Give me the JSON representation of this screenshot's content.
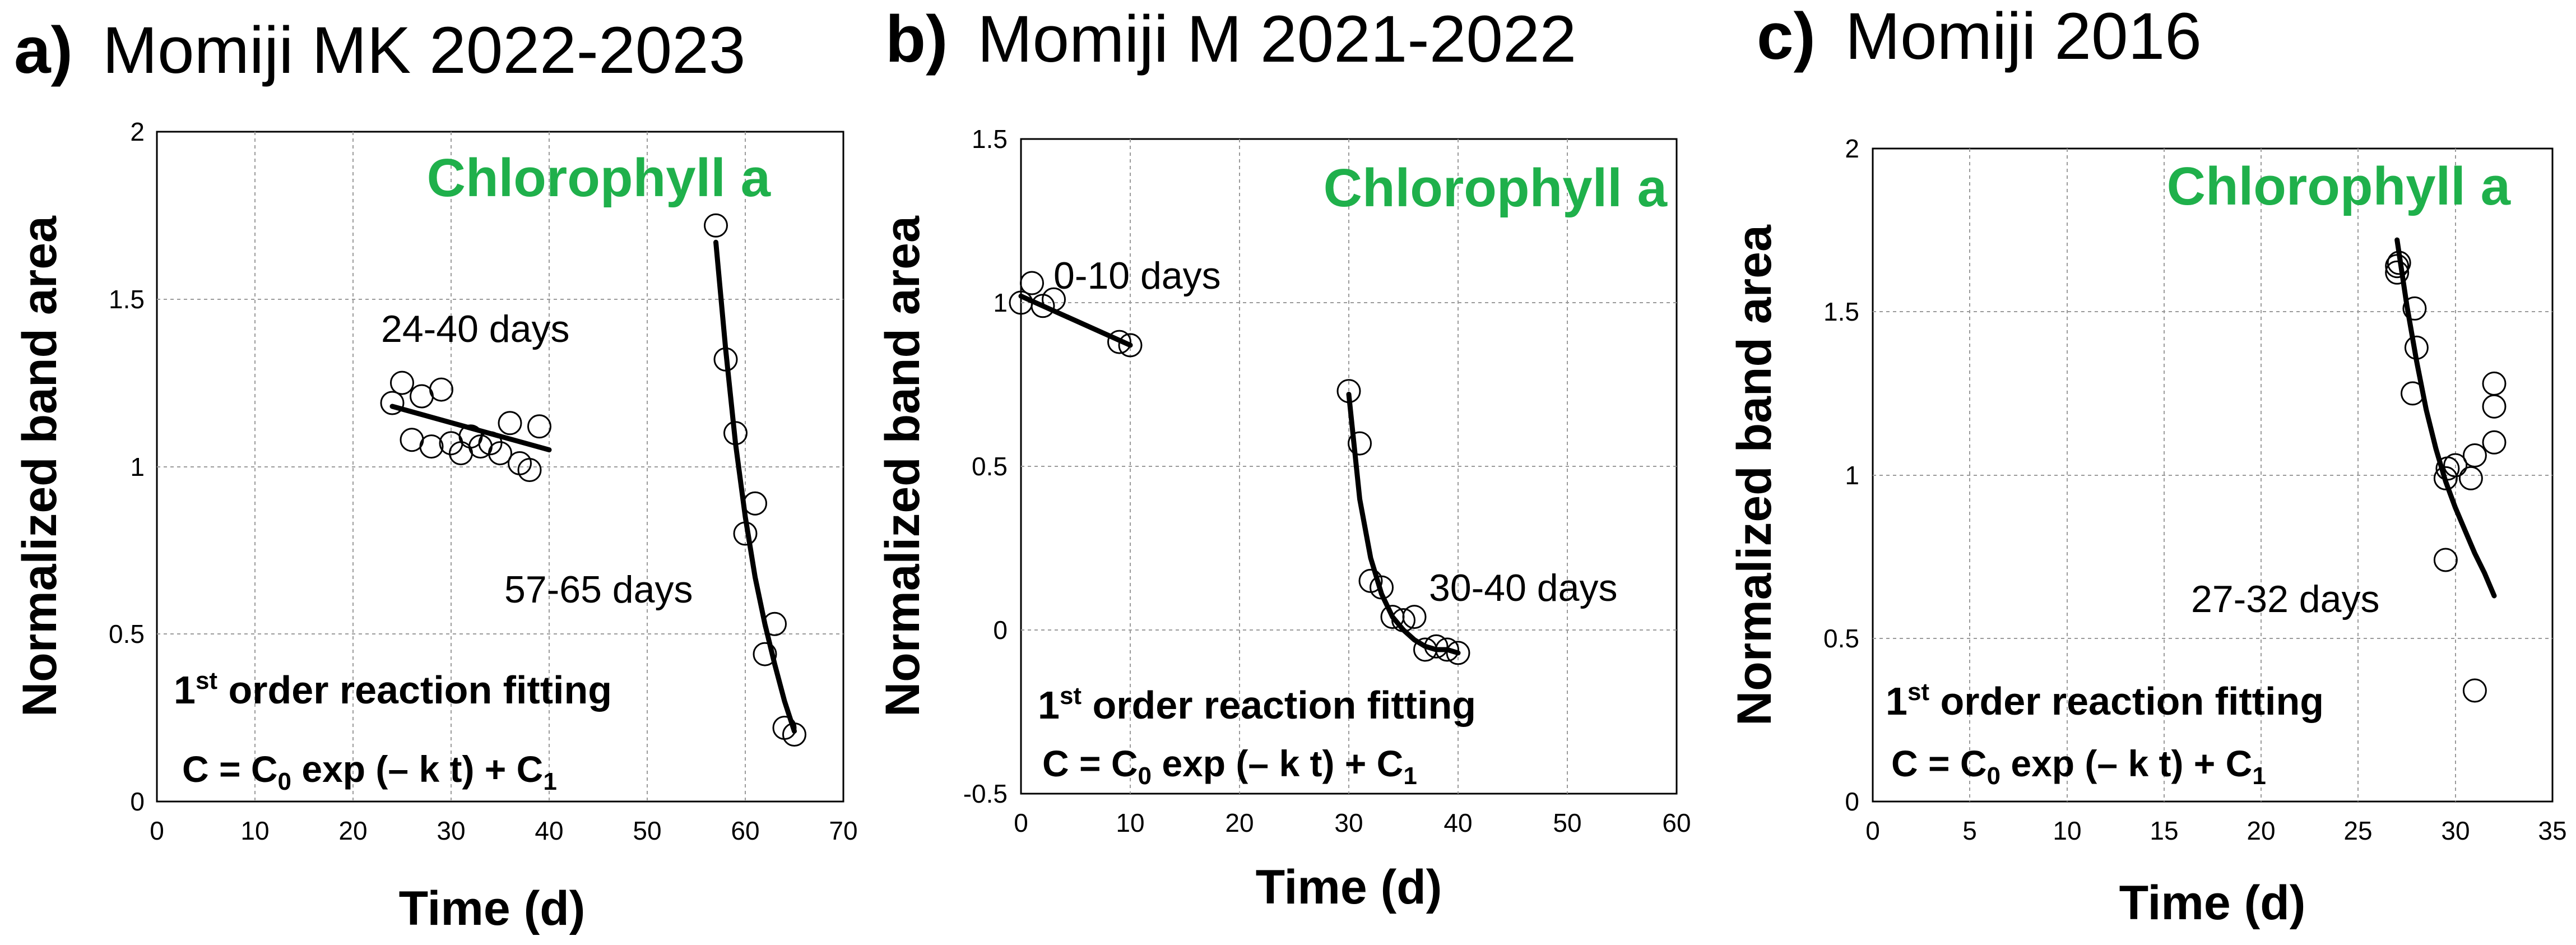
{
  "colors": {
    "accent": "#1fb04b",
    "ink": "#000000",
    "grid": "#9a9a9a"
  },
  "chart_data": [
    {
      "type": "scatter",
      "letter": "a)",
      "title": "Momiji MK 2022-2023",
      "xlabel": "Time (d)",
      "ylabel": "Normalized band area",
      "xlim": [
        0,
        70
      ],
      "ylim": [
        0,
        2
      ],
      "xticks": [
        "0",
        "10",
        "20",
        "30",
        "40",
        "50",
        "60",
        "70"
      ],
      "yticks": [
        "0",
        "0.5",
        "1",
        "1.5",
        "2"
      ],
      "species": "Chlorophyll a",
      "grid": true,
      "series": [
        {
          "name": "24-40 days",
          "points": [
            [
              24,
              1.19
            ],
            [
              25,
              1.25
            ],
            [
              26,
              1.08
            ],
            [
              27,
              1.21
            ],
            [
              28,
              1.06
            ],
            [
              29,
              1.23
            ],
            [
              30,
              1.07
            ],
            [
              31,
              1.04
            ],
            [
              32,
              1.09
            ],
            [
              33,
              1.06
            ],
            [
              34,
              1.07
            ],
            [
              35,
              1.04
            ],
            [
              36,
              1.13
            ],
            [
              37,
              1.01
            ],
            [
              38,
              0.99
            ],
            [
              39,
              1.12
            ]
          ],
          "fit": [
            [
              24,
              1.18
            ],
            [
              40,
              1.05
            ]
          ]
        },
        {
          "name": "57-65 days",
          "points": [
            [
              57,
              1.72
            ],
            [
              58,
              1.32
            ],
            [
              59,
              1.1
            ],
            [
              60,
              0.8
            ],
            [
              61,
              0.89
            ],
            [
              62,
              0.44
            ],
            [
              63,
              0.53
            ],
            [
              64,
              0.22
            ],
            [
              65,
              0.2
            ]
          ],
          "fit": [
            [
              57,
              1.67
            ],
            [
              58,
              1.35
            ],
            [
              59,
              1.07
            ],
            [
              60,
              0.85
            ],
            [
              61,
              0.67
            ],
            [
              62,
              0.53
            ],
            [
              63,
              0.41
            ],
            [
              64,
              0.3
            ],
            [
              65,
              0.21
            ]
          ]
        }
      ],
      "annotation_lines": [
        "1st order reaction fitting",
        "C = C0 exp (– k t) + C1"
      ]
    },
    {
      "type": "scatter",
      "letter": "b)",
      "title": "Momiji M 2021-2022",
      "xlabel": "Time (d)",
      "ylabel": "Normalized band area",
      "xlim": [
        0,
        60
      ],
      "ylim": [
        -0.5,
        1.5
      ],
      "xticks": [
        "0",
        "10",
        "20",
        "30",
        "40",
        "50",
        "60"
      ],
      "yticks": [
        "-0.5",
        "0",
        "0.5",
        "1",
        "1.5"
      ],
      "species": "Chlorophyll a",
      "grid": true,
      "series": [
        {
          "name": "0-10 days",
          "points": [
            [
              0,
              1.0
            ],
            [
              1,
              1.06
            ],
            [
              2,
              0.99
            ],
            [
              3,
              1.01
            ],
            [
              9,
              0.88
            ],
            [
              10,
              0.87
            ]
          ],
          "fit": [
            [
              0,
              1.02
            ],
            [
              10,
              0.87
            ]
          ]
        },
        {
          "name": "30-40 days",
          "points": [
            [
              30,
              0.73
            ],
            [
              31,
              0.57
            ],
            [
              32,
              0.15
            ],
            [
              33,
              0.13
            ],
            [
              34,
              0.04
            ],
            [
              35,
              0.03
            ],
            [
              36,
              0.04
            ],
            [
              37,
              -0.06
            ],
            [
              38,
              -0.05
            ],
            [
              39,
              -0.06
            ],
            [
              40,
              -0.07
            ]
          ],
          "fit": [
            [
              30,
              0.72
            ],
            [
              31,
              0.4
            ],
            [
              32,
              0.22
            ],
            [
              33,
              0.11
            ],
            [
              34,
              0.04
            ],
            [
              35,
              0.0
            ],
            [
              36,
              -0.03
            ],
            [
              37,
              -0.05
            ],
            [
              38,
              -0.06
            ],
            [
              39,
              -0.06
            ],
            [
              40,
              -0.07
            ]
          ]
        }
      ],
      "annotation_lines": [
        "1st order reaction fitting",
        "C = C0 exp (– k t) + C1"
      ]
    },
    {
      "type": "scatter",
      "letter": "c)",
      "title": "Momiji 2016",
      "xlabel": "Time (d)",
      "ylabel": "Normalized band area",
      "xlim": [
        0,
        35
      ],
      "ylim": [
        0,
        2
      ],
      "xticks": [
        "0",
        "5",
        "10",
        "15",
        "20",
        "25",
        "30",
        "35"
      ],
      "yticks": [
        "0",
        "0.5",
        "1",
        "1.5",
        "2"
      ],
      "species": "Chlorophyll a",
      "grid": true,
      "series": [
        {
          "name": "27-32 days",
          "points": [
            [
              27,
              1.64
            ],
            [
              27,
              1.62
            ],
            [
              27.1,
              1.65
            ],
            [
              27.9,
              1.51
            ],
            [
              28,
              1.39
            ],
            [
              27.8,
              1.25
            ],
            [
              29.5,
              0.99
            ],
            [
              29.6,
              1.02
            ],
            [
              29.5,
              0.74
            ],
            [
              30,
              1.03
            ],
            [
              30.8,
              0.99
            ],
            [
              31,
              1.06
            ],
            [
              32,
              1.28
            ],
            [
              32,
              1.21
            ],
            [
              32,
              1.1
            ],
            [
              31,
              0.34
            ]
          ],
          "fit": [
            [
              27,
              1.72
            ],
            [
              27.5,
              1.52
            ],
            [
              28,
              1.35
            ],
            [
              28.5,
              1.2
            ],
            [
              29,
              1.08
            ],
            [
              29.5,
              0.98
            ],
            [
              30,
              0.9
            ],
            [
              30.5,
              0.83
            ],
            [
              31,
              0.76
            ],
            [
              31.5,
              0.7
            ],
            [
              32,
              0.63
            ]
          ]
        }
      ],
      "annotation_lines": [
        "1st order reaction fitting",
        "C = C0 exp (– k t) + C1"
      ]
    }
  ]
}
